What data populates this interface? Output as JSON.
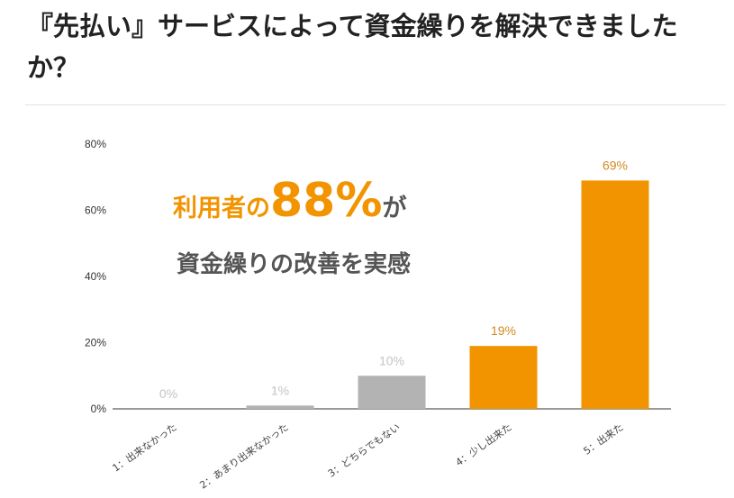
{
  "heading": "『先払い』サービスによって資金繰りを解決できましたか？",
  "colors": {
    "highlight": "#f29400",
    "neutral": "#b3b3b3",
    "muted_label": "#c4c4c4",
    "dark_label": "#d08a20"
  },
  "callout": {
    "line1_prefix": "利用者の",
    "line1_value": "88%",
    "line1_suffix": "が",
    "line2": "資金繰りの改善を実感"
  },
  "chart_data": {
    "type": "bar",
    "categories": [
      "1：出来なかった",
      "2：あまり出来なかった",
      "3：どちらでもない",
      "4：少し出来た",
      "5：出来た"
    ],
    "values": [
      0,
      1,
      10,
      19,
      69
    ],
    "value_labels": [
      "0%",
      "1%",
      "10%",
      "19%",
      "69%"
    ],
    "bar_colors": [
      "#b3b3b3",
      "#b3b3b3",
      "#b3b3b3",
      "#f29400",
      "#f29400"
    ],
    "ylim": [
      0,
      80
    ],
    "yticks": [
      0,
      20,
      40,
      60,
      80
    ],
    "ytick_labels": [
      "0%",
      "20%",
      "40%",
      "60%",
      "80%"
    ],
    "title": "",
    "xlabel": "",
    "ylabel": "",
    "grid": false,
    "legend": "none"
  }
}
